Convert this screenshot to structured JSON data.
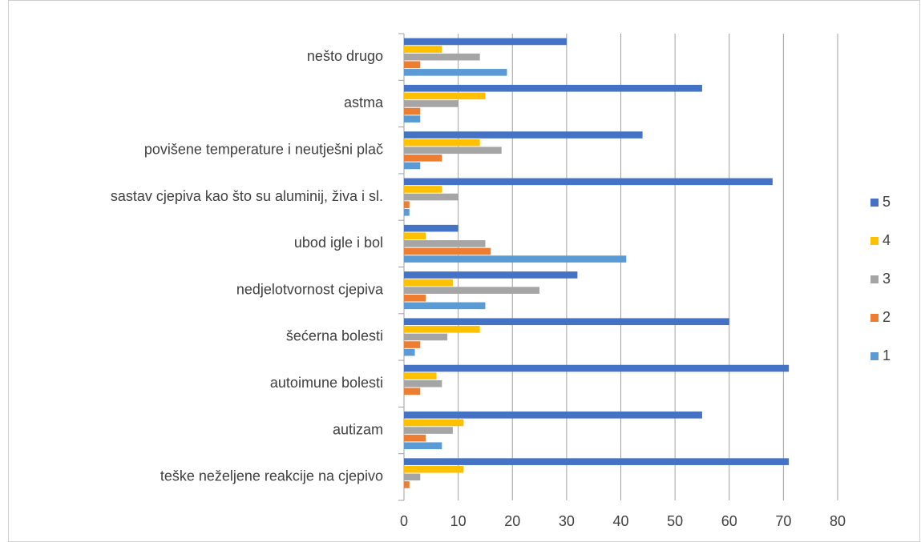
{
  "chart_data": {
    "type": "hbar",
    "categories": [
      "teške neželjene reakcije na cjepivo",
      "autizam",
      "autoimune bolesti",
      "šećerna bolesti",
      "nedjelotvornost cjepiva",
      "ubod igle i bol",
      "sastav cjepiva kao što su aluminij, živa i sl.",
      "povišene temperature i neutješni plač",
      "astma",
      "nešto drugo"
    ],
    "series": [
      {
        "name": "1",
        "color": "#5b9bd5",
        "values": [
          0,
          7,
          0,
          2,
          15,
          41,
          1,
          3,
          3,
          19
        ]
      },
      {
        "name": "2",
        "color": "#ed7d31",
        "values": [
          1,
          4,
          3,
          3,
          4,
          16,
          1,
          7,
          3,
          3
        ]
      },
      {
        "name": "3",
        "color": "#a5a5a5",
        "values": [
          3,
          9,
          7,
          8,
          25,
          15,
          10,
          18,
          10,
          14
        ]
      },
      {
        "name": "4",
        "color": "#ffc000",
        "values": [
          11,
          11,
          6,
          14,
          9,
          4,
          7,
          14,
          15,
          7
        ]
      },
      {
        "name": "5",
        "color": "#4472c4",
        "values": [
          71,
          55,
          71,
          60,
          32,
          10,
          68,
          44,
          55,
          30
        ]
      }
    ],
    "xlim": [
      0,
      80
    ],
    "xticks": [
      0,
      10,
      20,
      30,
      40,
      50,
      60,
      70,
      80
    ],
    "grid": true,
    "legend": "right"
  }
}
